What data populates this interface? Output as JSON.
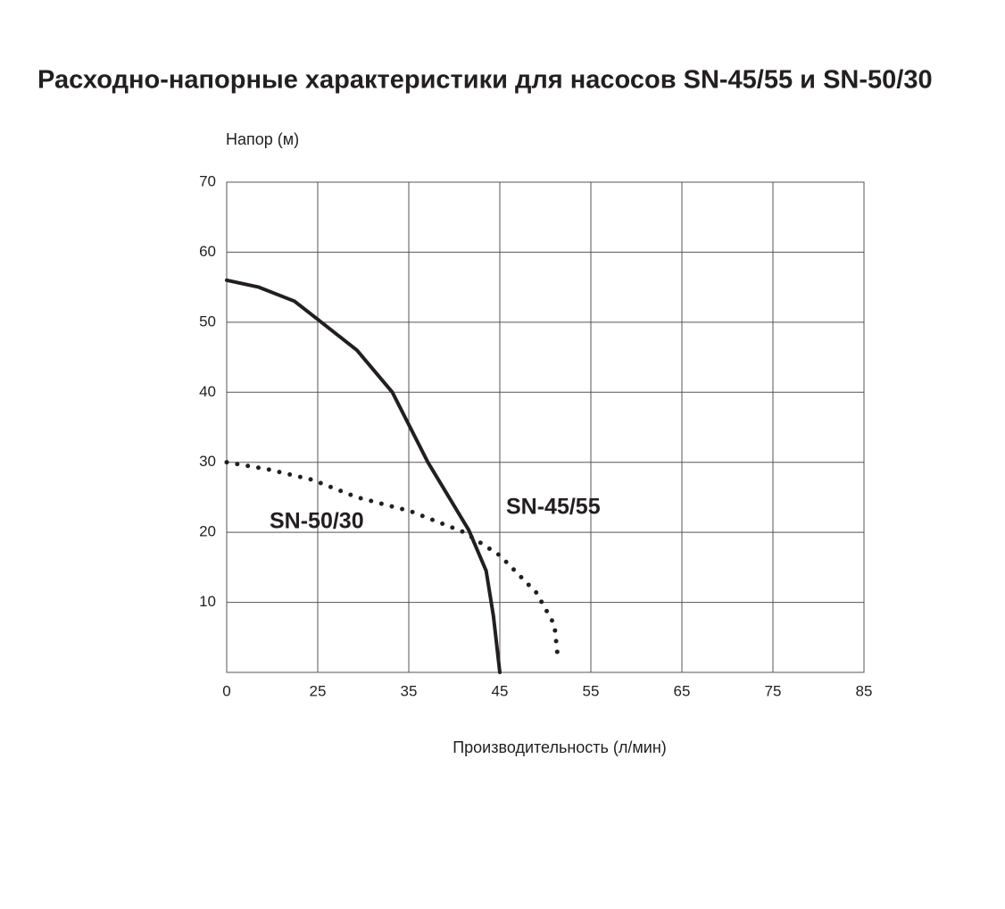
{
  "chart_data": {
    "type": "line",
    "title": "Расходно-напорные характеристики для насосов SN-45/55 и SN-50/30",
    "y_label": "Напор (м)",
    "x_label": "Производительность (л/мин)",
    "xscale": "evenly-spaced-ticks",
    "xlim": [
      0,
      85
    ],
    "xticks": [
      0,
      25,
      35,
      45,
      55,
      65,
      75,
      85
    ],
    "ylim": [
      0,
      70
    ],
    "yticks": [
      10,
      20,
      30,
      40,
      50,
      60,
      70
    ],
    "grid": true,
    "series": [
      {
        "name": "SN-45/55",
        "color": "#231f20",
        "style": "solid",
        "x": [
          0,
          8.8,
          18.6,
          25,
          29.3,
          33.2,
          37.1,
          41.6,
          43.5,
          44.3,
          45
        ],
        "values": [
          56,
          55,
          53,
          50.4,
          46,
          40,
          30,
          20.3,
          14.5,
          8,
          0
        ]
      },
      {
        "name": "SN-50/30",
        "color": "#231f20",
        "style": "dotted",
        "x": [
          0,
          11.3,
          23.5,
          29.3,
          35.2,
          41.1,
          45,
          49,
          51,
          51.4
        ],
        "values": [
          30,
          29,
          27.5,
          25,
          23,
          20,
          16.7,
          11.4,
          6.8,
          1.7
        ]
      }
    ]
  }
}
